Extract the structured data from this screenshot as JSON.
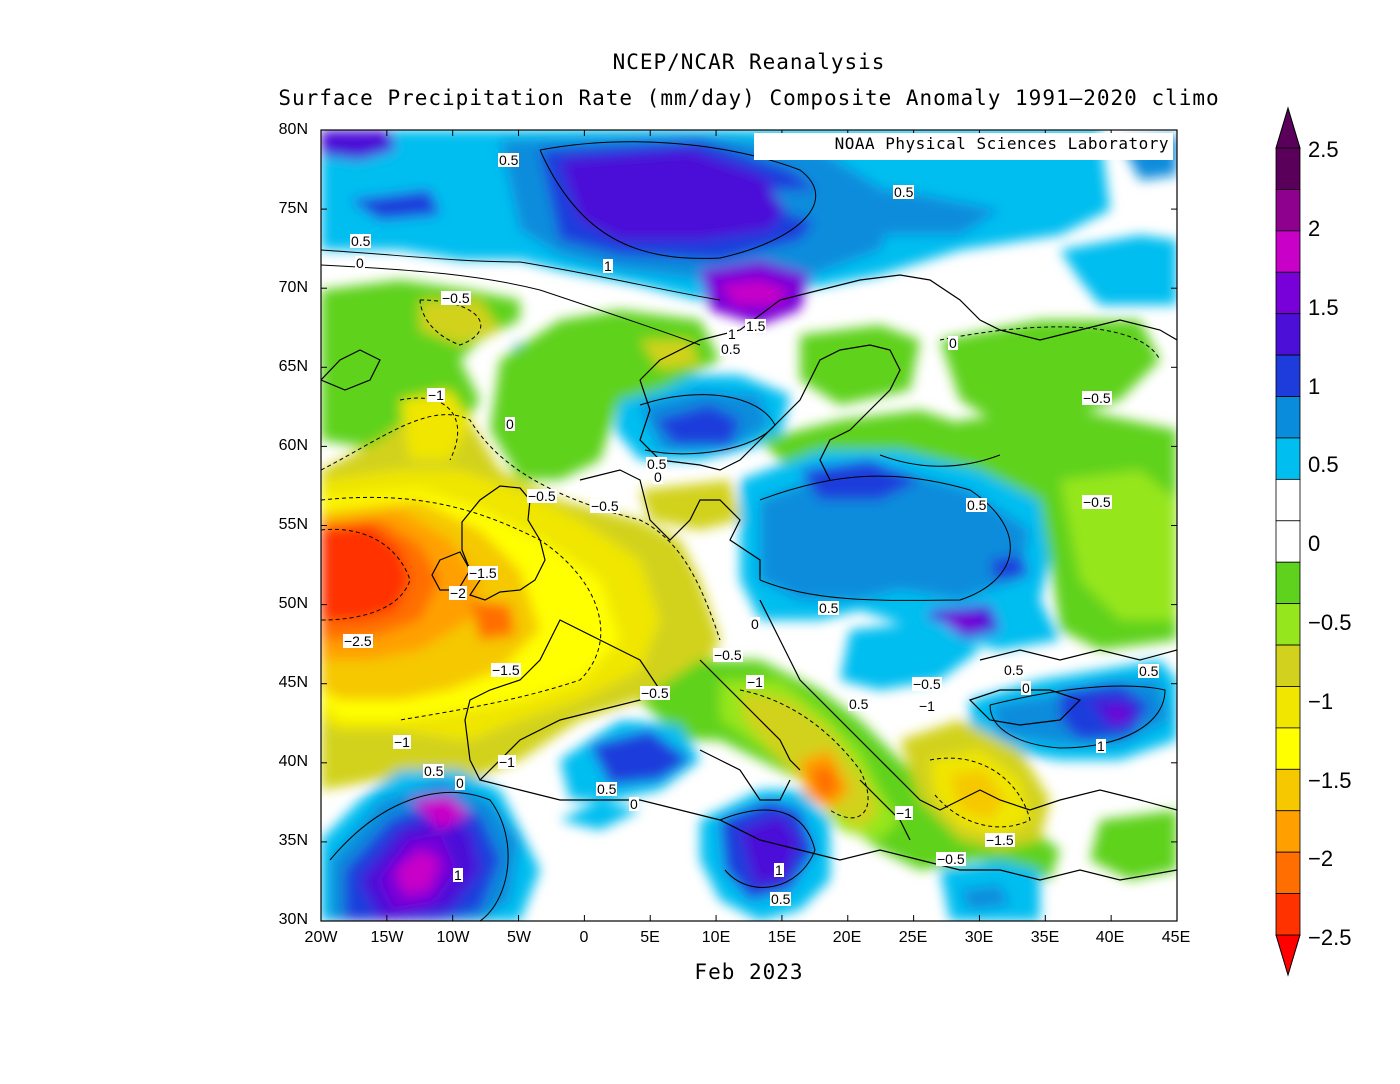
{
  "title": "NCEP/NCAR Reanalysis",
  "subtitle": "Surface Precipitation Rate (mm/day) Composite Anomaly 1991–2020 climo",
  "xcaption": "Feb 2023",
  "credit": "NOAA Physical Sciences Laboratory",
  "chart_data": {
    "type": "heatmap",
    "variable": "Surface Precipitation Rate anomaly",
    "units": "mm/day",
    "period": "Feb 2023",
    "lon_range": [
      -20,
      45
    ],
    "lat_range": [
      30,
      80
    ],
    "lat_ticks": [
      "80N",
      "75N",
      "70N",
      "65N",
      "60N",
      "55N",
      "50N",
      "45N",
      "40N",
      "35N",
      "30N"
    ],
    "lon_ticks": [
      "20W",
      "15W",
      "10W",
      "5W",
      "0",
      "5E",
      "10E",
      "15E",
      "20E",
      "25E",
      "30E",
      "35E",
      "40E",
      "45E"
    ],
    "colorbar": {
      "labels": [
        "2.5",
        "2",
        "1.5",
        "1",
        "0.5",
        "0",
        "−0.5",
        "−1",
        "−1.5",
        "−2",
        "−2.5"
      ],
      "colors": [
        "#5a005a",
        "#8e008e",
        "#c800c8",
        "#7800d8",
        "#4b0fd8",
        "#1e3cdc",
        "#0a8cdc",
        "#00bef0",
        "#ffffff",
        "#ffffff",
        "#5fd21e",
        "#96e61e",
        "#d2d21e",
        "#f0e600",
        "#ffff00",
        "#f5c800",
        "#ffa000",
        "#ff6e00",
        "#ff3200"
      ]
    },
    "contour_labels": [
      "0.5",
      "0.5",
      "0.5",
      "0",
      "1",
      "1.5",
      "1",
      "0.5",
      "0",
      "−0.5",
      "−1",
      "0",
      "0.5",
      "0",
      "−0.5",
      "−0.5",
      "−0.5",
      "0.5",
      "−1.5",
      "−2",
      "−2.5",
      "−1.5",
      "0.5",
      "0",
      "−0.5",
      "−0.5",
      "−1",
      "−1",
      "−0.5",
      "−1",
      "0",
      "0.5",
      "−0.5",
      "−1",
      "0.5",
      "0",
      "0.5",
      "1",
      "0.5",
      "1",
      "−1",
      "−1.5",
      "−0.5",
      "0",
      "0.5",
      "1",
      "0.5"
    ]
  }
}
